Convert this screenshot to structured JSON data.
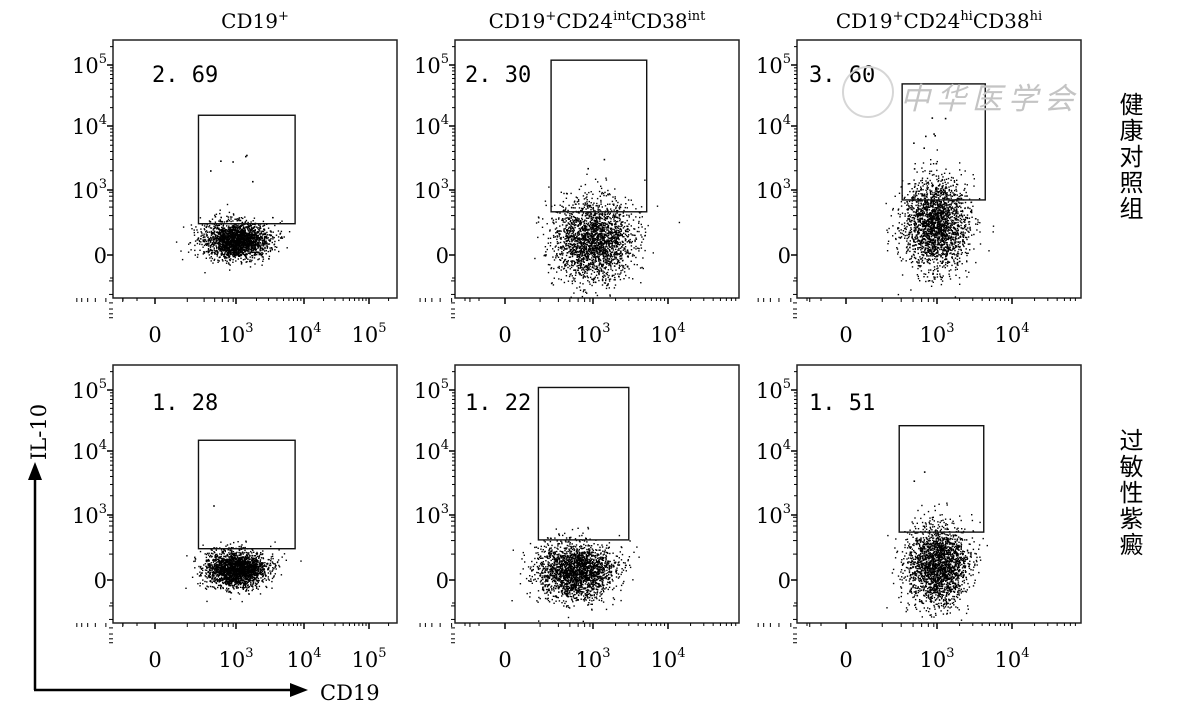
{
  "watermark": "中华医学会",
  "row_labels": [
    "健康对照组",
    "过敏性紫癜"
  ],
  "axis": {
    "y_label": "IL-10",
    "x_label": "CD19"
  },
  "chart_data": {
    "type": "scatter",
    "subtype": "flow-cytometry-dot-plots",
    "xlabel": "CD19",
    "ylabel": "IL-10",
    "column_titles": [
      {
        "base": "CD19",
        "parts": [
          [
            "CD19",
            "+"
          ]
        ]
      },
      {
        "base": "CD19+CD24intCD38int",
        "parts": [
          [
            "CD19",
            "+"
          ],
          [
            "CD24",
            "int"
          ],
          [
            "CD38",
            "int"
          ]
        ]
      },
      {
        "base": "CD19+CD24hiCD38hi",
        "parts": [
          [
            "CD19",
            "+"
          ],
          [
            "CD24",
            "hi"
          ],
          [
            "CD38",
            "hi"
          ]
        ]
      }
    ],
    "row_titles": [
      "健康对照组",
      "过敏性紫癜"
    ],
    "y_ticks": [
      {
        "v": 0,
        "base": "0",
        "exp": ""
      },
      {
        "v": 1000,
        "base": "10",
        "exp": "3"
      },
      {
        "v": 10000,
        "base": "10",
        "exp": "4"
      },
      {
        "v": 100000,
        "base": "10",
        "exp": "5"
      }
    ],
    "x_ticks_by_column": [
      [
        {
          "v": 0,
          "base": "0",
          "exp": ""
        },
        {
          "v": 1000,
          "base": "10",
          "exp": "3"
        },
        {
          "v": 10000,
          "base": "10",
          "exp": "4"
        },
        {
          "v": 100000,
          "base": "10",
          "exp": "5"
        }
      ],
      [
        {
          "v": 0,
          "base": "0",
          "exp": ""
        },
        {
          "v": 1000,
          "base": "10",
          "exp": "3"
        },
        {
          "v": 10000,
          "base": "10",
          "exp": "4"
        }
      ],
      [
        {
          "v": 0,
          "base": "0",
          "exp": ""
        },
        {
          "v": 1000,
          "base": "10",
          "exp": "3"
        },
        {
          "v": 10000,
          "base": "10",
          "exp": "4"
        }
      ]
    ],
    "axis_scale": "biexponential",
    "grid": false,
    "panels": [
      {
        "row": 0,
        "col": 0,
        "gate_percent": "2.69",
        "gate": {
          "x": [
            240,
            7400
          ],
          "y": [
            200,
            15000
          ]
        },
        "population_center": {
          "x": 1000,
          "y": 75
        },
        "events_in_gate": "sparse"
      },
      {
        "row": 0,
        "col": 1,
        "gate_percent": "2.30",
        "gate": {
          "x": [
            230,
            5200
          ],
          "y": [
            360,
            120000
          ]
        },
        "population_center": {
          "x": 1000,
          "y": 75
        },
        "events_in_gate": "sparse"
      },
      {
        "row": 0,
        "col": 2,
        "gate_percent": "3.60",
        "gate": {
          "x": [
            310,
            4400
          ],
          "y": [
            630,
            49000
          ]
        },
        "population_center": {
          "x": 950,
          "y": 200
        },
        "events_in_gate": "sparse"
      },
      {
        "row": 1,
        "col": 0,
        "gate_percent": "1.28",
        "gate": {
          "x": [
            240,
            7400
          ],
          "y": [
            200,
            15000
          ]
        },
        "population_center": {
          "x": 1000,
          "y": 55
        },
        "events_in_gate": "sparse"
      },
      {
        "row": 1,
        "col": 1,
        "gate_percent": "1.22",
        "gate": {
          "x": [
            140,
            3000
          ],
          "y": [
            310,
            110000
          ]
        },
        "population_center": {
          "x": 550,
          "y": 45
        },
        "events_in_gate": "sparse"
      },
      {
        "row": 1,
        "col": 2,
        "gate_percent": "1.51",
        "gate": {
          "x": [
            280,
            4200
          ],
          "y": [
            450,
            26000
          ]
        },
        "population_center": {
          "x": 1000,
          "y": 75
        },
        "events_in_gate": "sparse"
      }
    ]
  }
}
